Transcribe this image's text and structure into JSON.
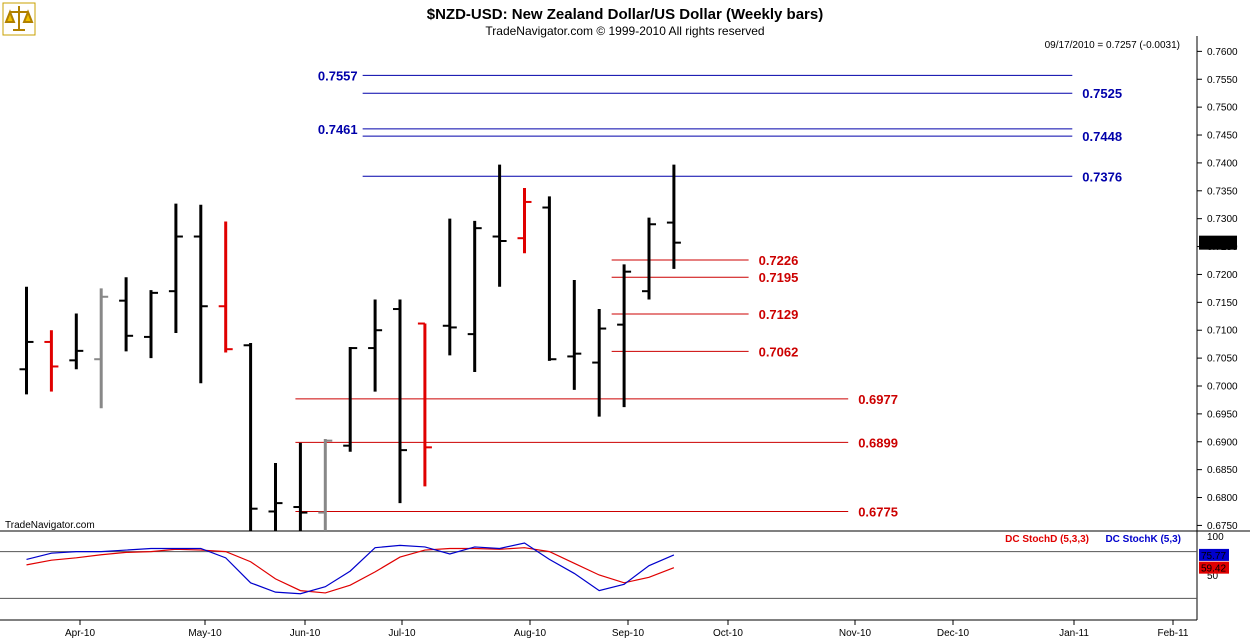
{
  "header": {
    "title": "$NZD-USD:  New Zealand Dollar/US Dollar  (Weekly bars)",
    "subtitle": "TradeNavigator.com © 1999-2010 All rights reserved",
    "info": "09/17/2010 = 0.7257 (-0.0031)",
    "watermark": "TradeNavigator.com"
  },
  "colors": {
    "bar_up": "#000000",
    "bar_down": "#e00000",
    "bar_neutral": "#888888",
    "blue_level": "#0000aa",
    "red_level": "#cc0000",
    "stoch_d": "#e00000",
    "stoch_k": "#0000cc"
  },
  "chart_data": [
    {
      "type": "ohlc",
      "title": "$NZD-USD:  New Zealand Dollar/US Dollar  (Weekly bars)",
      "ylim": [
        0.674,
        0.7615
      ],
      "y_ticks": [
        "0.7600",
        "0.7550",
        "0.7500",
        "0.7450",
        "0.7400",
        "0.7350",
        "0.7300",
        "0.7250",
        "0.7200",
        "0.7150",
        "0.7100",
        "0.7050",
        "0.7000",
        "0.6950",
        "0.6900",
        "0.6850",
        "0.6800",
        "0.6750"
      ],
      "x_ticks": [
        "Apr-10",
        "May-10",
        "Jun-10",
        "Jul-10",
        "Aug-10",
        "Sep-10",
        "Oct-10",
        "Nov-10",
        "Dec-10",
        "Jan-11",
        "Feb-11"
      ],
      "last_price_label": "0.7257",
      "bars": [
        {
          "week": 0,
          "open": 0.703,
          "high": 0.7178,
          "low": 0.6985,
          "close": 0.7079,
          "color": "black"
        },
        {
          "week": 1,
          "open": 0.7079,
          "high": 0.71,
          "low": 0.699,
          "close": 0.7035,
          "color": "red"
        },
        {
          "week": 2,
          "open": 0.7046,
          "high": 0.713,
          "low": 0.703,
          "close": 0.7063,
          "color": "black"
        },
        {
          "week": 3,
          "open": 0.7048,
          "high": 0.7175,
          "low": 0.696,
          "close": 0.716,
          "color": "gray"
        },
        {
          "week": 4,
          "open": 0.7153,
          "high": 0.7195,
          "low": 0.7062,
          "close": 0.709,
          "color": "black"
        },
        {
          "week": 5,
          "open": 0.7088,
          "high": 0.7172,
          "low": 0.705,
          "close": 0.7167,
          "color": "black"
        },
        {
          "week": 6,
          "open": 0.717,
          "high": 0.7327,
          "low": 0.7095,
          "close": 0.7268,
          "color": "black"
        },
        {
          "week": 7,
          "open": 0.7268,
          "high": 0.7325,
          "low": 0.7005,
          "close": 0.7143,
          "color": "black"
        },
        {
          "week": 8,
          "open": 0.7143,
          "high": 0.7295,
          "low": 0.706,
          "close": 0.7066,
          "color": "red"
        },
        {
          "week": 9,
          "open": 0.7073,
          "high": 0.7077,
          "low": 0.674,
          "close": 0.678,
          "color": "black"
        },
        {
          "week": 10,
          "open": 0.6775,
          "high": 0.6862,
          "low": 0.674,
          "close": 0.679,
          "color": "black"
        },
        {
          "week": 11,
          "open": 0.6783,
          "high": 0.6898,
          "low": 0.674,
          "close": 0.6773,
          "color": "black"
        },
        {
          "week": 12,
          "open": 0.6773,
          "high": 0.6905,
          "low": 0.674,
          "close": 0.6902,
          "color": "gray"
        },
        {
          "week": 13,
          "open": 0.6893,
          "high": 0.707,
          "low": 0.6882,
          "close": 0.7068,
          "color": "black"
        },
        {
          "week": 14,
          "open": 0.7068,
          "high": 0.7155,
          "low": 0.699,
          "close": 0.71,
          "color": "black"
        },
        {
          "week": 15,
          "open": 0.7138,
          "high": 0.7155,
          "low": 0.679,
          "close": 0.6885,
          "color": "black"
        },
        {
          "week": 16,
          "open": 0.7112,
          "high": 0.7112,
          "low": 0.682,
          "close": 0.689,
          "color": "red"
        },
        {
          "week": 17,
          "open": 0.7108,
          "high": 0.73,
          "low": 0.7055,
          "close": 0.7105,
          "color": "black"
        },
        {
          "week": 18,
          "open": 0.7093,
          "high": 0.7296,
          "low": 0.7025,
          "close": 0.7283,
          "color": "black"
        },
        {
          "week": 19,
          "open": 0.7268,
          "high": 0.7397,
          "low": 0.7178,
          "close": 0.726,
          "color": "black"
        },
        {
          "week": 20,
          "open": 0.7265,
          "high": 0.7355,
          "low": 0.7238,
          "close": 0.733,
          "color": "red"
        },
        {
          "week": 21,
          "open": 0.732,
          "high": 0.734,
          "low": 0.7045,
          "close": 0.7048,
          "color": "black"
        },
        {
          "week": 22,
          "open": 0.7053,
          "high": 0.719,
          "low": 0.6993,
          "close": 0.7058,
          "color": "black"
        },
        {
          "week": 23,
          "open": 0.7042,
          "high": 0.7138,
          "low": 0.6945,
          "close": 0.7103,
          "color": "black"
        },
        {
          "week": 24,
          "open": 0.711,
          "high": 0.7218,
          "low": 0.6962,
          "close": 0.7205,
          "color": "black"
        },
        {
          "week": 25,
          "open": 0.717,
          "high": 0.7302,
          "low": 0.7155,
          "close": 0.729,
          "color": "black"
        },
        {
          "week": 26,
          "open": 0.7293,
          "high": 0.7397,
          "low": 0.721,
          "close": 0.7257,
          "color": "black"
        }
      ],
      "levels": [
        {
          "value": 0.7557,
          "label": "0.7557",
          "color": "blue",
          "label_side": "left",
          "from_week": 13.5,
          "to_week": 42
        },
        {
          "value": 0.7525,
          "label": "0.7525",
          "color": "blue",
          "label_side": "right",
          "from_week": 13.5,
          "to_week": 42
        },
        {
          "value": 0.7461,
          "label": "0.7461",
          "color": "blue",
          "label_side": "left",
          "from_week": 13.5,
          "to_week": 42
        },
        {
          "value": 0.7448,
          "label": "0.7448",
          "color": "blue",
          "label_side": "right",
          "from_week": 13.5,
          "to_week": 42
        },
        {
          "value": 0.7376,
          "label": "0.7376",
          "color": "blue",
          "label_side": "right",
          "from_week": 13.5,
          "to_week": 42
        },
        {
          "value": 0.7226,
          "label": "0.7226",
          "color": "red",
          "label_side": "right",
          "from_week": 23.5,
          "to_week": 29
        },
        {
          "value": 0.7195,
          "label": "0.7195",
          "color": "red",
          "label_side": "right",
          "from_week": 23.5,
          "to_week": 29
        },
        {
          "value": 0.7129,
          "label": "0.7129",
          "color": "red",
          "label_side": "right",
          "from_week": 23.5,
          "to_week": 29
        },
        {
          "value": 0.7062,
          "label": "0.7062",
          "color": "red",
          "label_side": "right",
          "from_week": 23.5,
          "to_week": 29
        },
        {
          "value": 0.6977,
          "label": "0.6977",
          "color": "red",
          "label_side": "right",
          "from_week": 10.8,
          "to_week": 33
        },
        {
          "value": 0.6899,
          "label": "0.6899",
          "color": "red",
          "label_side": "right",
          "from_week": 10.8,
          "to_week": 33
        },
        {
          "value": 0.6775,
          "label": "0.6775",
          "color": "red",
          "label_side": "right",
          "from_week": 10.8,
          "to_week": 33
        }
      ]
    },
    {
      "type": "line",
      "title": "",
      "ylim": [
        0,
        100
      ],
      "y_ticks": [
        "100",
        "50"
      ],
      "reference_lines": [
        80,
        20
      ],
      "legend": [
        "DC StochD (5,3,3)",
        "DC StochK (5,3)"
      ],
      "series": [
        {
          "name": "DC StochD (5,3,3)",
          "color": "red",
          "last_label": "59.42",
          "values": [
            63,
            69,
            72,
            76,
            79,
            80,
            83,
            82,
            80,
            67,
            45,
            30,
            27,
            37,
            54,
            73,
            82,
            84,
            84,
            83,
            85,
            80,
            65,
            50,
            40,
            47,
            59.42
          ]
        },
        {
          "name": "DC StochK (5,3)",
          "color": "blue",
          "last_label": "75.77",
          "values": [
            70,
            78,
            80,
            80,
            82,
            84,
            84,
            84,
            72,
            40,
            28,
            26,
            35,
            55,
            85,
            88,
            86,
            77,
            86,
            84,
            91,
            70,
            52,
            30,
            38,
            62,
            75.77
          ]
        }
      ]
    }
  ]
}
